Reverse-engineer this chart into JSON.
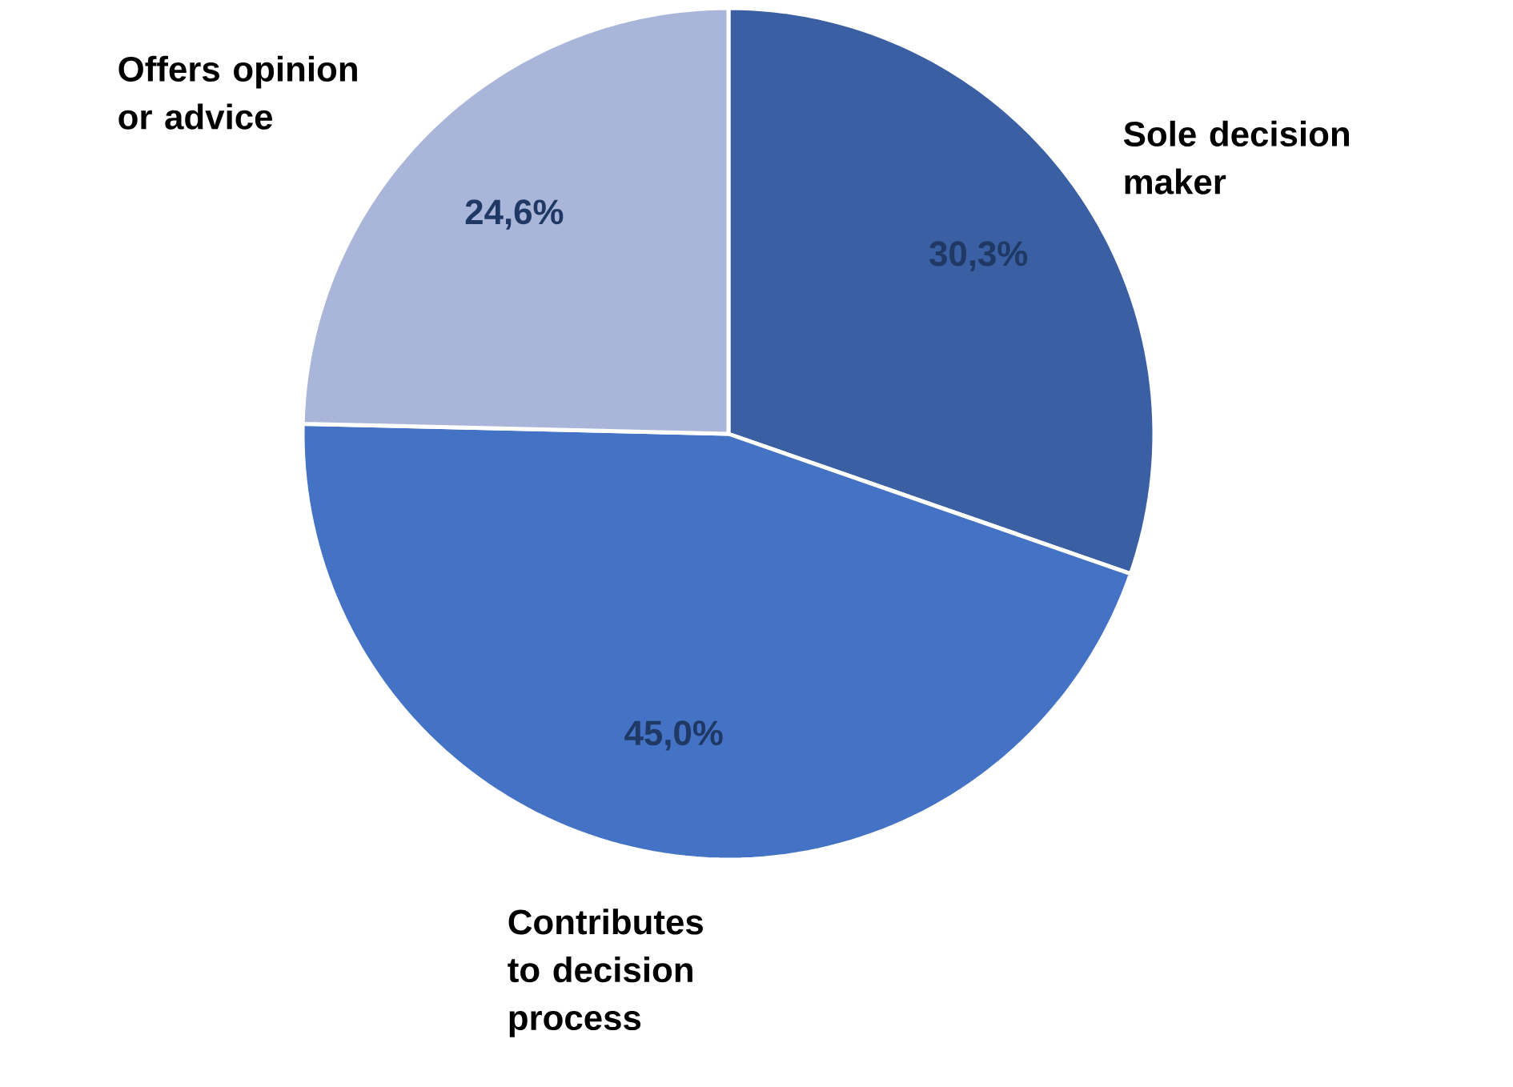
{
  "chart_data": {
    "type": "pie",
    "categories": [
      "Sole decision maker",
      "Contributes to decision process",
      "Offers opinion or advice"
    ],
    "values": [
      30.3,
      45.0,
      24.6
    ],
    "colors": [
      "#3a5fa3",
      "#4472c4",
      "#a9b6da"
    ],
    "value_labels": [
      "30,3%",
      "45,0%",
      "24,6%"
    ]
  }
}
